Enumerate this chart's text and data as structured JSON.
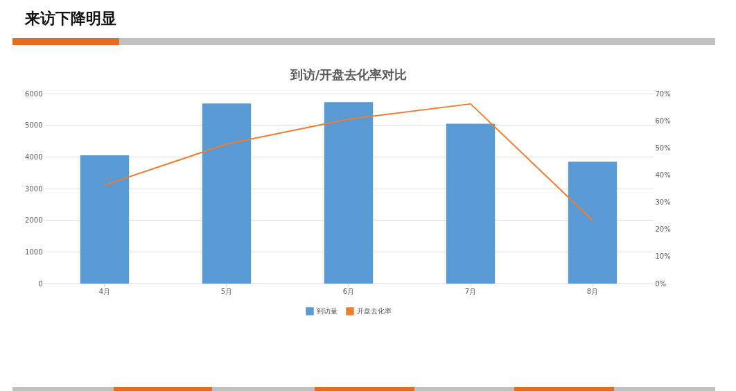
{
  "chart_data": {
    "type": "bar",
    "title": "来访下降明显",
    "subtitle": "到访/开盘去化率对比",
    "categories": [
      "4月",
      "5月",
      "6月",
      "7月",
      "8月"
    ],
    "series": [
      {
        "name": "到访量",
        "color": "#5b9bd5",
        "values": [
          4050,
          5690,
          5730,
          5050,
          3850
        ]
      },
      {
        "name": "开盘去化率",
        "type": "line",
        "axis": "y2",
        "color": "#ed7d31",
        "values": [
          36.3,
          51.4,
          60.6,
          66.2,
          23.3
        ]
      }
    ],
    "ylim": [
      0,
      6000
    ],
    "yticks": [
      0,
      1000,
      2000,
      3000,
      4000,
      5000,
      6000
    ],
    "y2lim": [
      0,
      70
    ],
    "y2ticks": [
      {
        "value": 0,
        "label": "0%"
      },
      {
        "value": 10,
        "label": "10%"
      },
      {
        "value": 20,
        "label": "20%"
      },
      {
        "value": 30,
        "label": "30%"
      },
      {
        "value": 40,
        "label": "40%"
      },
      {
        "value": 50,
        "label": "50%"
      },
      {
        "value": 60,
        "label": "60%"
      },
      {
        "value": 70,
        "label": "70%"
      }
    ],
    "grid": "y",
    "legend": "bottom",
    "marker": "none",
    "line_style": "solid"
  }
}
